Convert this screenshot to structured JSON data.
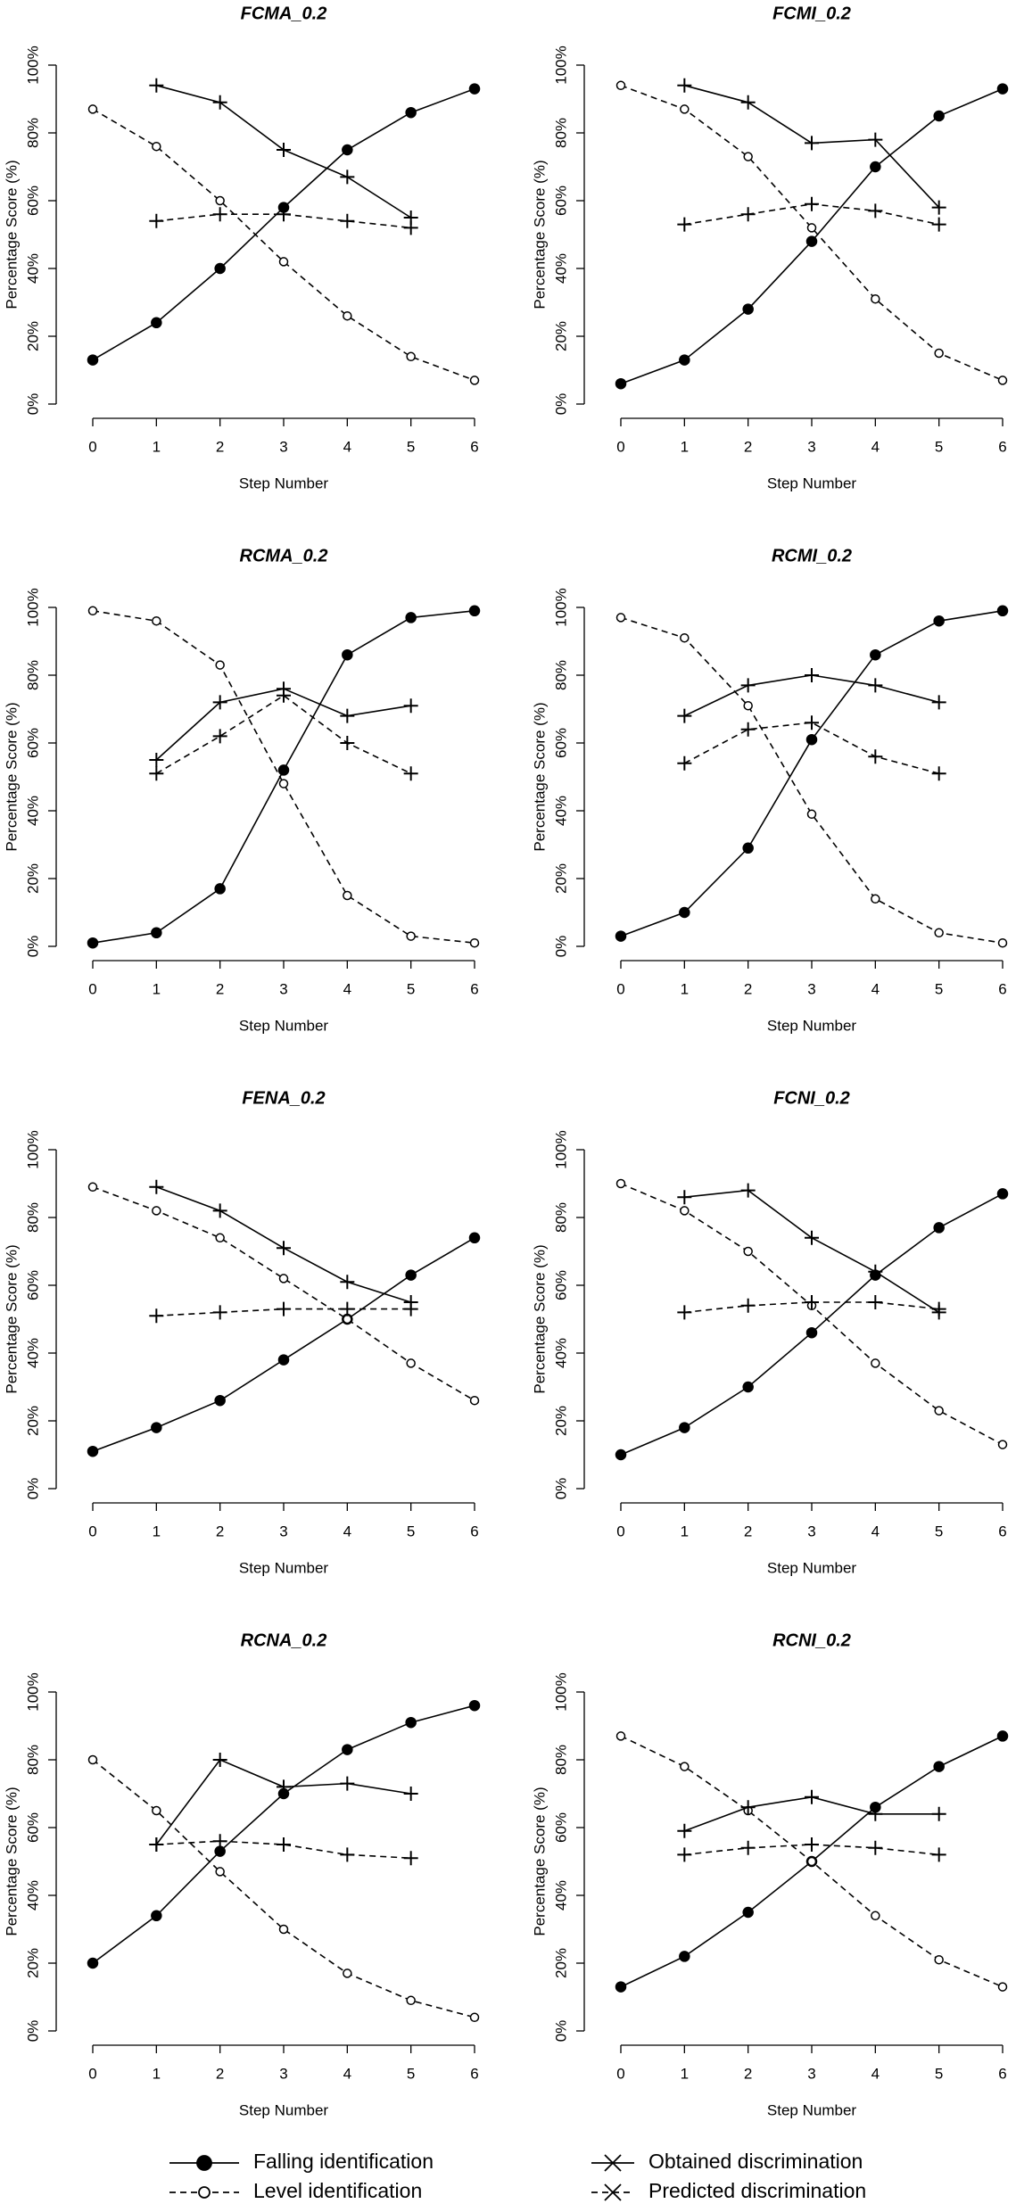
{
  "legend": [
    {
      "name": "Falling identification",
      "marker": "filled",
      "dash": false
    },
    {
      "name": "Level identification",
      "marker": "open",
      "dash": true
    },
    {
      "name": "Obtained discrimination",
      "marker": "plus",
      "dash": false
    },
    {
      "name": "Predicted discrimination",
      "marker": "plus",
      "dash": true
    }
  ],
  "chart_data": [
    {
      "type": "line",
      "title": "FCMA_0.2",
      "x_label": "Step Number",
      "y_label": "Percentage Score (%)",
      "xlim": [
        0,
        6
      ],
      "xticks": [
        0,
        1,
        2,
        3,
        4,
        5,
        6
      ],
      "x": [
        0,
        1,
        2,
        3,
        4,
        5,
        6
      ],
      "ylim": [
        0,
        100
      ],
      "yticks": [
        {
          "value": 0,
          "label": "0%"
        },
        {
          "value": 20,
          "label": "20%"
        },
        {
          "value": 40,
          "label": "40%"
        },
        {
          "value": 60,
          "label": "60%"
        },
        {
          "value": 80,
          "label": "80%"
        },
        {
          "value": 100,
          "label": "100%"
        }
      ],
      "series": [
        {
          "values": [
            13,
            24,
            40,
            58,
            75,
            86,
            93
          ]
        },
        {
          "values": [
            87,
            76,
            60,
            42,
            26,
            14,
            7
          ]
        },
        {
          "values": [
            null,
            94,
            89,
            75,
            67,
            55,
            null
          ]
        },
        {
          "values": [
            null,
            54,
            56,
            56,
            54,
            52,
            null
          ]
        }
      ]
    },
    {
      "type": "line",
      "title": "FCMI_0.2",
      "x_label": "Step Number",
      "y_label": "Percentage Score (%)",
      "xlim": [
        0,
        6
      ],
      "xticks": [
        0,
        1,
        2,
        3,
        4,
        5,
        6
      ],
      "x": [
        0,
        1,
        2,
        3,
        4,
        5,
        6
      ],
      "ylim": [
        0,
        100
      ],
      "yticks": [
        {
          "value": 0,
          "label": "0%"
        },
        {
          "value": 20,
          "label": "20%"
        },
        {
          "value": 40,
          "label": "40%"
        },
        {
          "value": 60,
          "label": "60%"
        },
        {
          "value": 80,
          "label": "80%"
        },
        {
          "value": 100,
          "label": "100%"
        }
      ],
      "series": [
        {
          "values": [
            6,
            13,
            28,
            48,
            70,
            85,
            93
          ]
        },
        {
          "values": [
            94,
            87,
            73,
            52,
            31,
            15,
            7
          ]
        },
        {
          "values": [
            null,
            94,
            89,
            77,
            78,
            58,
            null
          ]
        },
        {
          "values": [
            null,
            53,
            56,
            59,
            57,
            53,
            null
          ]
        }
      ]
    },
    {
      "type": "line",
      "title": "RCMA_0.2",
      "x_label": "Step Number",
      "y_label": "Percentage Score (%)",
      "xlim": [
        0,
        6
      ],
      "xticks": [
        0,
        1,
        2,
        3,
        4,
        5,
        6
      ],
      "x": [
        0,
        1,
        2,
        3,
        4,
        5,
        6
      ],
      "ylim": [
        0,
        100
      ],
      "yticks": [
        {
          "value": 0,
          "label": "0%"
        },
        {
          "value": 20,
          "label": "20%"
        },
        {
          "value": 40,
          "label": "40%"
        },
        {
          "value": 60,
          "label": "60%"
        },
        {
          "value": 80,
          "label": "80%"
        },
        {
          "value": 100,
          "label": "100%"
        }
      ],
      "series": [
        {
          "values": [
            1,
            4,
            17,
            52,
            86,
            97,
            99
          ]
        },
        {
          "values": [
            99,
            96,
            83,
            48,
            15,
            3,
            1
          ]
        },
        {
          "values": [
            null,
            55,
            72,
            76,
            68,
            71,
            null
          ]
        },
        {
          "values": [
            null,
            51,
            62,
            74,
            60,
            51,
            null
          ]
        }
      ]
    },
    {
      "type": "line",
      "title": "RCMI_0.2",
      "x_label": "Step Number",
      "y_label": "Percentage Score (%)",
      "xlim": [
        0,
        6
      ],
      "xticks": [
        0,
        1,
        2,
        3,
        4,
        5,
        6
      ],
      "x": [
        0,
        1,
        2,
        3,
        4,
        5,
        6
      ],
      "ylim": [
        0,
        100
      ],
      "yticks": [
        {
          "value": 0,
          "label": "0%"
        },
        {
          "value": 20,
          "label": "20%"
        },
        {
          "value": 40,
          "label": "40%"
        },
        {
          "value": 60,
          "label": "60%"
        },
        {
          "value": 80,
          "label": "80%"
        },
        {
          "value": 100,
          "label": "100%"
        }
      ],
      "series": [
        {
          "values": [
            3,
            10,
            29,
            61,
            86,
            96,
            99
          ]
        },
        {
          "values": [
            97,
            91,
            71,
            39,
            14,
            4,
            1
          ]
        },
        {
          "values": [
            null,
            68,
            77,
            80,
            77,
            72,
            null
          ]
        },
        {
          "values": [
            null,
            54,
            64,
            66,
            56,
            51,
            null
          ]
        }
      ]
    },
    {
      "type": "line",
      "title": "FENA_0.2",
      "x_label": "Step Number",
      "y_label": "Percentage Score (%)",
      "xlim": [
        0,
        6
      ],
      "xticks": [
        0,
        1,
        2,
        3,
        4,
        5,
        6
      ],
      "x": [
        0,
        1,
        2,
        3,
        4,
        5,
        6
      ],
      "ylim": [
        0,
        100
      ],
      "yticks": [
        {
          "value": 0,
          "label": "0%"
        },
        {
          "value": 20,
          "label": "20%"
        },
        {
          "value": 40,
          "label": "40%"
        },
        {
          "value": 60,
          "label": "60%"
        },
        {
          "value": 80,
          "label": "80%"
        },
        {
          "value": 100,
          "label": "100%"
        }
      ],
      "series": [
        {
          "values": [
            11,
            18,
            26,
            38,
            50,
            63,
            74
          ]
        },
        {
          "values": [
            89,
            82,
            74,
            62,
            50,
            37,
            26
          ]
        },
        {
          "values": [
            null,
            89,
            82,
            71,
            61,
            55,
            null
          ]
        },
        {
          "values": [
            null,
            51,
            52,
            53,
            53,
            53,
            null
          ]
        }
      ]
    },
    {
      "type": "line",
      "title": "FCNI_0.2",
      "x_label": "Step Number",
      "y_label": "Percentage Score (%)",
      "xlim": [
        0,
        6
      ],
      "xticks": [
        0,
        1,
        2,
        3,
        4,
        5,
        6
      ],
      "x": [
        0,
        1,
        2,
        3,
        4,
        5,
        6
      ],
      "ylim": [
        0,
        100
      ],
      "yticks": [
        {
          "value": 0,
          "label": "0%"
        },
        {
          "value": 20,
          "label": "20%"
        },
        {
          "value": 40,
          "label": "40%"
        },
        {
          "value": 60,
          "label": "60%"
        },
        {
          "value": 80,
          "label": "80%"
        },
        {
          "value": 100,
          "label": "100%"
        }
      ],
      "series": [
        {
          "values": [
            10,
            18,
            30,
            46,
            63,
            77,
            87
          ]
        },
        {
          "values": [
            90,
            82,
            70,
            54,
            37,
            23,
            13
          ]
        },
        {
          "values": [
            null,
            86,
            88,
            74,
            64,
            52,
            null
          ]
        },
        {
          "values": [
            null,
            52,
            54,
            55,
            55,
            53,
            null
          ]
        }
      ]
    },
    {
      "type": "line",
      "title": "RCNA_0.2",
      "x_label": "Step Number",
      "y_label": "Percentage Score (%)",
      "xlim": [
        0,
        6
      ],
      "xticks": [
        0,
        1,
        2,
        3,
        4,
        5,
        6
      ],
      "x": [
        0,
        1,
        2,
        3,
        4,
        5,
        6
      ],
      "ylim": [
        0,
        100
      ],
      "yticks": [
        {
          "value": 0,
          "label": "0%"
        },
        {
          "value": 20,
          "label": "20%"
        },
        {
          "value": 40,
          "label": "40%"
        },
        {
          "value": 60,
          "label": "60%"
        },
        {
          "value": 80,
          "label": "80%"
        },
        {
          "value": 100,
          "label": "100%"
        }
      ],
      "series": [
        {
          "values": [
            20,
            34,
            53,
            70,
            83,
            91,
            96
          ]
        },
        {
          "values": [
            80,
            65,
            47,
            30,
            17,
            9,
            4
          ]
        },
        {
          "values": [
            null,
            55,
            80,
            72,
            73,
            70,
            null
          ]
        },
        {
          "values": [
            null,
            55,
            56,
            55,
            52,
            51,
            null
          ]
        }
      ]
    },
    {
      "type": "line",
      "title": "RCNI_0.2",
      "x_label": "Step Number",
      "y_label": "Percentage Score (%)",
      "xlim": [
        0,
        6
      ],
      "xticks": [
        0,
        1,
        2,
        3,
        4,
        5,
        6
      ],
      "x": [
        0,
        1,
        2,
        3,
        4,
        5,
        6
      ],
      "ylim": [
        0,
        100
      ],
      "yticks": [
        {
          "value": 0,
          "label": "0%"
        },
        {
          "value": 20,
          "label": "20%"
        },
        {
          "value": 40,
          "label": "40%"
        },
        {
          "value": 60,
          "label": "60%"
        },
        {
          "value": 80,
          "label": "80%"
        },
        {
          "value": 100,
          "label": "100%"
        }
      ],
      "series": [
        {
          "values": [
            13,
            22,
            35,
            50,
            66,
            78,
            87
          ]
        },
        {
          "values": [
            87,
            78,
            65,
            50,
            34,
            21,
            13
          ]
        },
        {
          "values": [
            null,
            59,
            66,
            69,
            64,
            64,
            null
          ]
        },
        {
          "values": [
            null,
            52,
            54,
            55,
            54,
            52,
            null
          ]
        }
      ]
    }
  ]
}
